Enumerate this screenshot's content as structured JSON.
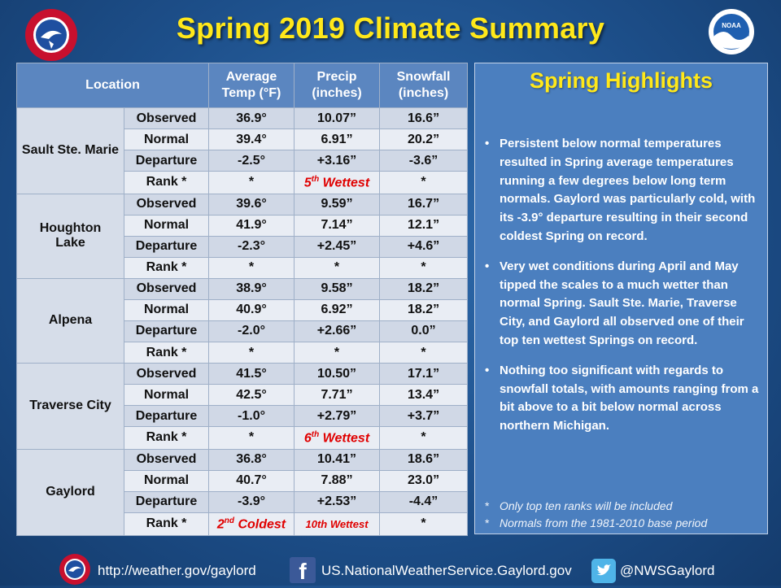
{
  "title": "Spring 2019 Climate Summary",
  "table": {
    "headers": {
      "location": "Location",
      "temp": [
        "Average",
        "Temp (°F)"
      ],
      "precip": [
        "Precip",
        "(inches)"
      ],
      "snow": [
        "Snowfall",
        "(inches)"
      ]
    },
    "stations": [
      {
        "name": [
          "Sault Ste. Marie"
        ],
        "rows": [
          {
            "label": "Observed",
            "temp": "36.9°",
            "precip": "10.07”",
            "snow": "16.6”"
          },
          {
            "label": "Normal",
            "temp": "39.4°",
            "precip": "6.91”",
            "snow": "20.2”"
          },
          {
            "label": "Departure",
            "temp": "-2.5°",
            "precip": "+3.16”",
            "snow": "-3.6”"
          },
          {
            "label": "Rank *",
            "temp": "*",
            "precip_num": "5",
            "precip_sup": "th",
            "precip_txt": " Wettest",
            "snow": "*"
          }
        ]
      },
      {
        "name": [
          "Houghton",
          "Lake"
        ],
        "rows": [
          {
            "label": "Observed",
            "temp": "39.6°",
            "precip": "9.59”",
            "snow": "16.7”"
          },
          {
            "label": "Normal",
            "temp": "41.9°",
            "precip": "7.14”",
            "snow": "12.1”"
          },
          {
            "label": "Departure",
            "temp": "-2.3°",
            "precip": "+2.45”",
            "snow": "+4.6”"
          },
          {
            "label": "Rank *",
            "temp": "*",
            "precip": "*",
            "snow": "*"
          }
        ]
      },
      {
        "name": [
          "Alpena"
        ],
        "rows": [
          {
            "label": "Observed",
            "temp": "38.9°",
            "precip": "9.58”",
            "snow": "18.2”"
          },
          {
            "label": "Normal",
            "temp": "40.9°",
            "precip": "6.92”",
            "snow": "18.2”"
          },
          {
            "label": "Departure",
            "temp": "-2.0°",
            "precip": "+2.66”",
            "snow": "0.0”"
          },
          {
            "label": "Rank *",
            "temp": "*",
            "precip": "*",
            "snow": "*"
          }
        ]
      },
      {
        "name": [
          "Traverse City"
        ],
        "rows": [
          {
            "label": "Observed",
            "temp": "41.5°",
            "precip": "10.50”",
            "snow": "17.1”"
          },
          {
            "label": "Normal",
            "temp": "42.5°",
            "precip": "7.71”",
            "snow": "13.4”"
          },
          {
            "label": "Departure",
            "temp": "-1.0°",
            "precip": "+2.79”",
            "snow": "+3.7”"
          },
          {
            "label": "Rank *",
            "temp": "*",
            "precip_num": "6",
            "precip_sup": "th",
            "precip_txt": " Wettest",
            "snow": "*"
          }
        ]
      },
      {
        "name": [
          "Gaylord"
        ],
        "rows": [
          {
            "label": "Observed",
            "temp": "36.8°",
            "precip": "10.41”",
            "snow": "18.6”"
          },
          {
            "label": "Normal",
            "temp": "40.7°",
            "precip": "7.88”",
            "snow": "23.0”"
          },
          {
            "label": "Departure",
            "temp": "-3.9°",
            "precip": "+2.53”",
            "snow": "-4.4”"
          },
          {
            "label": "Rank *",
            "temp_num": "2",
            "temp_sup": "nd",
            "temp_txt": " Coldest",
            "precip_small": "10th Wettest",
            "snow": "*"
          }
        ]
      }
    ]
  },
  "highlights": {
    "title": "Spring Highlights",
    "bullets": [
      "Persistent below normal temperatures resulted in Spring average temperatures running a few degrees below long term normals. Gaylord was particularly cold, with its -3.9° departure resulting in their second coldest Spring on record.",
      "Very wet conditions during April and May tipped the scales to a much wetter than normal Spring.  Sault Ste. Marie, Traverse City, and Gaylord all observed one of their top ten wettest Springs on record.",
      "Nothing too significant with regards to snowfall totals, with amounts ranging from a bit above to a bit below normal across northern Michigan."
    ],
    "notes": [
      "Only top ten ranks will be included",
      "Normals from the 1981-2010 base period"
    ]
  },
  "footer": {
    "website": "http://weather.gov/gaylord",
    "facebook": "US.NationalWeatherService.Gaylord.gov",
    "twitter": "@NWSGaylord"
  },
  "logo_text": {
    "nws": "NATIONAL WEATHER SERVICE",
    "noaa": "NOAA"
  },
  "colors": {
    "title": "#ffe81a",
    "rank_red": "#e00000",
    "header_blue": "#5b86c0",
    "panel_blue": "#4b7fbf"
  }
}
